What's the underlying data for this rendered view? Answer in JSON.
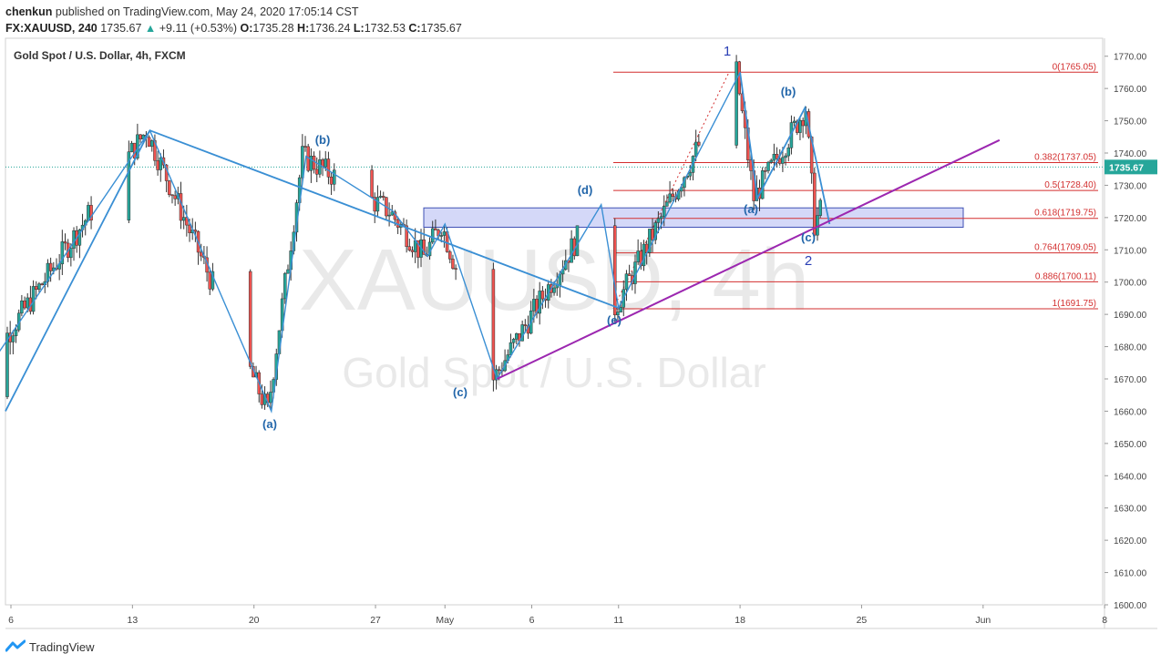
{
  "header": {
    "author": "chenkun",
    "published_text": "published on TradingView.com, May 24, 2020 17:05:14 CST",
    "symbol": "FX:XAUUSD, 240",
    "last": "1735.67",
    "change": "+9.11 (+0.53%)",
    "o_label": "O:",
    "o": "1735.28",
    "h_label": "H:",
    "h": "1736.24",
    "l_label": "L:",
    "l": "1732.53",
    "c_label": "C:",
    "c": "1735.67"
  },
  "footer": {
    "brand": "TradingView"
  },
  "colors": {
    "up": "#26a69a",
    "down": "#ef5350",
    "wave": "#3a8fd4",
    "trend": "#9c27b0",
    "fib": "#d32f2f",
    "zone": "#3f51b5",
    "label": "#2266aa",
    "major": "#2a3fb5"
  },
  "chart_data": {
    "type": "candlestick",
    "title": "Gold Spot / U.S. Dollar, 4h, FXCM",
    "watermark": [
      "XAUUSD, 4h",
      "Gold Spot / U.S. Dollar"
    ],
    "x_ticks": [
      "6",
      "13",
      "20",
      "27",
      "May",
      "6",
      "11",
      "18",
      "25",
      "Jun",
      "8"
    ],
    "y_ticks": [
      "1770.00",
      "1760.00",
      "1750.00",
      "1740.00",
      "1730.00",
      "1720.00",
      "1710.00",
      "1700.00",
      "1690.00",
      "1680.00",
      "1670.00",
      "1660.00",
      "1650.00",
      "1640.00",
      "1630.00",
      "1620.00",
      "1610.00",
      "1600.00"
    ],
    "ylim": [
      1600,
      1775
    ],
    "last_price": "1735.67",
    "fib_levels": [
      {
        "label": "0(1765.05)",
        "value": 1765.05
      },
      {
        "label": "0.382(1737.05)",
        "value": 1737.05
      },
      {
        "label": "0.5(1728.40)",
        "value": 1728.4
      },
      {
        "label": "0.618(1719.75)",
        "value": 1719.75
      },
      {
        "label": "0.764(1709.05)",
        "value": 1709.05
      },
      {
        "label": "0.886(1700.11)",
        "value": 1700.11
      },
      {
        "label": "1(1691.75)",
        "value": 1691.75
      }
    ],
    "zone": {
      "from": 1717,
      "to": 1723
    },
    "wave_points": [
      {
        "date": "Apr 3",
        "price": 1660
      },
      {
        "date": "Apr 14",
        "price": 1747
      },
      {
        "date": "Apr 21",
        "price": 1660
      },
      {
        "date": "Apr 23",
        "price": 1739
      },
      {
        "date": "Apr 28",
        "price": 1722
      },
      {
        "date": "Apr 30",
        "price": 1708
      },
      {
        "date": "May 1",
        "price": 1718
      },
      {
        "date": "May 4",
        "price": 1670
      },
      {
        "date": "May 10",
        "price": 1724
      },
      {
        "date": "May 11",
        "price": 1692
      },
      {
        "date": "May 18",
        "price": 1765
      },
      {
        "date": "May 19",
        "price": 1726
      },
      {
        "date": "May 22",
        "price": 1754
      },
      {
        "date": "May 22",
        "price": 1718
      }
    ],
    "trendline": [
      {
        "date": "May 4",
        "price": 1670
      },
      {
        "date": "Jun 1",
        "price": 1744
      }
    ],
    "wave_labels": [
      "(a)",
      "(b)",
      "(c)",
      "(d)",
      "(e)",
      "1",
      "(a)",
      "(b)",
      "(c)",
      "2"
    ]
  }
}
